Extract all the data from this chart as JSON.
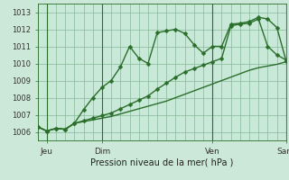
{
  "title": "",
  "xlabel": "Pression niveau de la mer( hPa )",
  "background_color": "#cce8d8",
  "plot_bg_color": "#c8e8d8",
  "grid_color": "#88b898",
  "line_color": "#2a6e2a",
  "marker_color": "#2a6e2a",
  "ylim": [
    1005.5,
    1013.5
  ],
  "yticks": [
    1006,
    1007,
    1008,
    1009,
    1010,
    1011,
    1012,
    1013
  ],
  "xtick_labels": [
    "Jeu",
    "Dim",
    "Ven",
    "Sam"
  ],
  "xtick_positions": [
    1,
    7,
    19,
    27
  ],
  "vline_positions": [
    1,
    7,
    19,
    27
  ],
  "series1": [
    1006.3,
    1006.05,
    1006.2,
    1006.15,
    1006.5,
    1007.3,
    1008.0,
    1008.6,
    1009.0,
    1009.8,
    1011.0,
    1010.3,
    1010.0,
    1011.8,
    1011.9,
    1012.0,
    1011.75,
    1011.1,
    1010.6,
    1011.0,
    1011.0,
    1012.3,
    1012.35,
    1012.45,
    1012.7,
    1012.6,
    1012.1,
    1010.15
  ],
  "series2": [
    1006.3,
    1006.05,
    1006.2,
    1006.15,
    1006.5,
    1006.65,
    1006.8,
    1006.95,
    1007.1,
    1007.35,
    1007.6,
    1007.85,
    1008.1,
    1008.5,
    1008.85,
    1009.2,
    1009.5,
    1009.7,
    1009.9,
    1010.1,
    1010.3,
    1012.2,
    1012.3,
    1012.35,
    1012.6,
    1011.0,
    1010.5,
    1010.2
  ],
  "series3": [
    1006.3,
    1006.05,
    1006.2,
    1006.15,
    1006.5,
    1006.6,
    1006.7,
    1006.8,
    1006.9,
    1007.05,
    1007.2,
    1007.35,
    1007.5,
    1007.65,
    1007.8,
    1008.0,
    1008.2,
    1008.4,
    1008.6,
    1008.8,
    1009.0,
    1009.2,
    1009.4,
    1009.6,
    1009.75,
    1009.85,
    1009.95,
    1010.1
  ],
  "n_points": 28,
  "marker_size": 2.5,
  "linewidth": 1.0
}
